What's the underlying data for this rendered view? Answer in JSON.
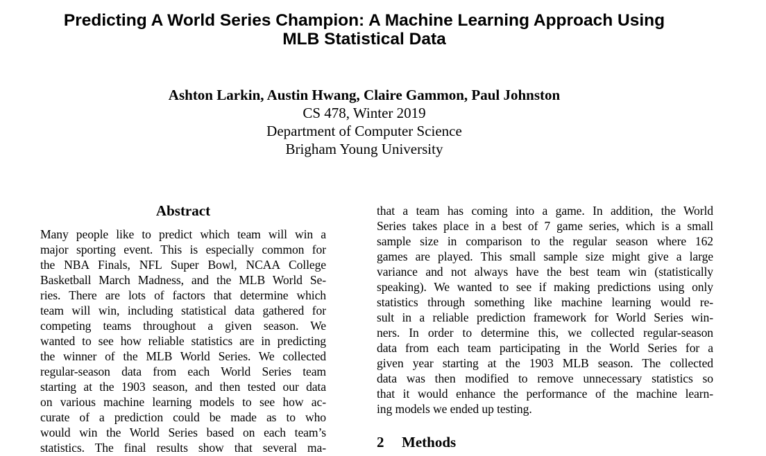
{
  "paper": {
    "title_line1": "Predicting A World Series Champion: A Machine Learning Approach Using",
    "title_line2": "MLB Statistical Data",
    "authors": "Ashton Larkin, Austin Hwang, Claire Gammon, Paul Johnston",
    "course": "CS 478, Winter 2019",
    "department": "Department of Computer Science",
    "university": "Brigham Young University"
  },
  "abstract": {
    "heading": "Abstract",
    "lines": [
      "Many people like to predict which team will win a",
      "major sporting event. This is especially common for",
      "the NBA Finals, NFL Super Bowl, NCAA College",
      "Basketball March Madness, and the MLB World Se-",
      "ries. There are lots of factors that determine which",
      "team will win, including statistical data gathered for",
      "competing teams throughout a given season. We",
      "wanted to see how reliable statistics are in predicting",
      "the winner of the MLB World Series. We collected",
      "regular-season data from each World Series team",
      "starting at the 1903 season, and then tested our data",
      "on various machine learning models to see how ac-",
      "curate of a prediction could be made as to who",
      "would win the World Series based on each team’s",
      "statistics. The final results show that several ma-"
    ]
  },
  "right_column": {
    "lines": [
      "that a team has coming into a game. In addition, the World",
      "Series takes place in a best of 7 game series, which is a small",
      "sample size in comparison to the regular season where 162",
      "games are played. This small sample size might give a large",
      "variance and not always have the best team win (statistically",
      "speaking). We wanted to see if making predictions using only",
      "statistics through something like machine learning would re-",
      "sult in a reliable prediction framework for World Series win-",
      "ners. In order to determine this, we collected regular-season",
      "data from each team participating in the World Series for a",
      "given year starting at the 1903 MLB season. The collected",
      "data was then modified to remove unnecessary statistics so",
      "that it would enhance the performance of the machine learn-",
      "ing models we ended up testing."
    ]
  },
  "section": {
    "number": "2",
    "title": "Methods"
  }
}
